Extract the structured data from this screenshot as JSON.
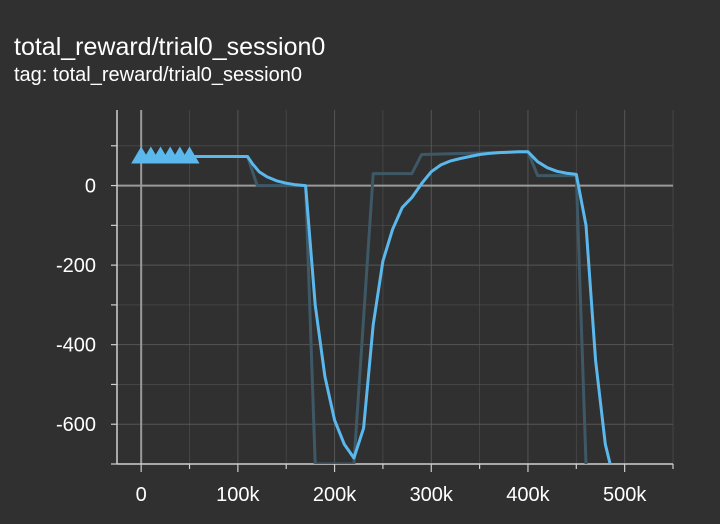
{
  "header": {
    "title": "total_reward/trial0_session0",
    "tag": "tag: total_reward/trial0_session0"
  },
  "colors": {
    "background": "#303030",
    "smoothed": "#5bb8ec",
    "raw": "#3f5866",
    "grid": "#5a5a5a",
    "axis": "#9a9a9a"
  },
  "chart_data": {
    "type": "line",
    "title": "total_reward/trial0_session0",
    "xlabel": "",
    "ylabel": "",
    "xlim": [
      -25000,
      550000
    ],
    "ylim": [
      -700,
      190
    ],
    "xticks": [
      0,
      100000,
      200000,
      300000,
      400000,
      500000
    ],
    "xtick_labels": [
      "0",
      "100k",
      "200k",
      "300k",
      "400k",
      "500k"
    ],
    "yticks": [
      0,
      -200,
      -400,
      -600
    ],
    "ytick_labels": [
      "0",
      "-200",
      "-400",
      "-600"
    ],
    "grid": true,
    "series": [
      {
        "name": "smoothed",
        "values": [
          [
            0,
            73
          ],
          [
            10000,
            73
          ],
          [
            20000,
            73
          ],
          [
            30000,
            73
          ],
          [
            40000,
            73
          ],
          [
            50000,
            73
          ],
          [
            60000,
            73
          ],
          [
            80000,
            73
          ],
          [
            100000,
            73
          ],
          [
            110000,
            73
          ],
          [
            115000,
            55
          ],
          [
            122000,
            35
          ],
          [
            130000,
            22
          ],
          [
            140000,
            12
          ],
          [
            150000,
            6
          ],
          [
            160000,
            2
          ],
          [
            170000,
            0
          ],
          [
            180000,
            -300
          ],
          [
            190000,
            -480
          ],
          [
            200000,
            -590
          ],
          [
            210000,
            -650
          ],
          [
            220000,
            -685
          ],
          [
            230000,
            -610
          ],
          [
            240000,
            -350
          ],
          [
            250000,
            -190
          ],
          [
            260000,
            -110
          ],
          [
            270000,
            -55
          ],
          [
            280000,
            -30
          ],
          [
            290000,
            5
          ],
          [
            300000,
            35
          ],
          [
            310000,
            52
          ],
          [
            320000,
            62
          ],
          [
            330000,
            68
          ],
          [
            340000,
            73
          ],
          [
            350000,
            78
          ],
          [
            360000,
            81
          ],
          [
            370000,
            83
          ],
          [
            380000,
            84
          ],
          [
            390000,
            85
          ],
          [
            400000,
            85
          ],
          [
            410000,
            60
          ],
          [
            420000,
            45
          ],
          [
            430000,
            36
          ],
          [
            440000,
            31
          ],
          [
            450000,
            28
          ],
          [
            460000,
            -100
          ],
          [
            470000,
            -440
          ],
          [
            480000,
            -650
          ],
          [
            485000,
            -700
          ]
        ]
      },
      {
        "name": "raw",
        "values": [
          [
            0,
            73
          ],
          [
            110000,
            73
          ],
          [
            120000,
            0
          ],
          [
            170000,
            0
          ],
          [
            180000,
            -700
          ],
          [
            220000,
            -700
          ],
          [
            240000,
            30
          ],
          [
            280000,
            30
          ],
          [
            290000,
            78
          ],
          [
            400000,
            85
          ],
          [
            410000,
            25
          ],
          [
            450000,
            25
          ],
          [
            460000,
            -700
          ]
        ]
      }
    ],
    "markers": {
      "series": "smoothed",
      "shape": "triangle",
      "x": [
        0,
        10000,
        20000,
        30000,
        40000,
        50000
      ]
    }
  }
}
